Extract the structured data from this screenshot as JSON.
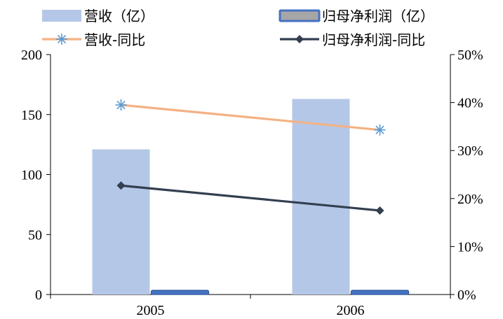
{
  "chart_data": {
    "type": "bar",
    "categories": [
      "2005",
      "2006"
    ],
    "series": [
      {
        "name": "营收（亿）",
        "kind": "bar",
        "axis": "left",
        "color": "#b4c7e7",
        "values": [
          121,
          163
        ]
      },
      {
        "name": "归母净利润（亿）",
        "kind": "bar",
        "axis": "left",
        "color": "#4472c4",
        "values": [
          1.2,
          1.6
        ]
      },
      {
        "name": "营收-同比",
        "kind": "line",
        "axis": "right",
        "color": "#f4b183",
        "marker": "asterisk",
        "marker_color": "#5b9bd5",
        "values": [
          0.395,
          0.343
        ]
      },
      {
        "name": "归母净利润-同比",
        "kind": "line",
        "axis": "right",
        "color": "#333f50",
        "marker": "diamond",
        "values": [
          0.227,
          0.175
        ]
      }
    ],
    "y_left": {
      "min": 0,
      "max": 200,
      "ticks": [
        0,
        50,
        100,
        150,
        200
      ],
      "tick_labels": [
        "0",
        "50",
        "100",
        "150",
        "200"
      ]
    },
    "y_right": {
      "min": 0,
      "max": 0.5,
      "ticks": [
        0,
        0.1,
        0.2,
        0.3,
        0.4,
        0.5
      ],
      "tick_labels": [
        "0%",
        "10%",
        "20%",
        "30%",
        "40%",
        "50%"
      ]
    },
    "title": "",
    "xlabel": "",
    "ylabel": "",
    "grid": false,
    "legend_position": "top"
  }
}
